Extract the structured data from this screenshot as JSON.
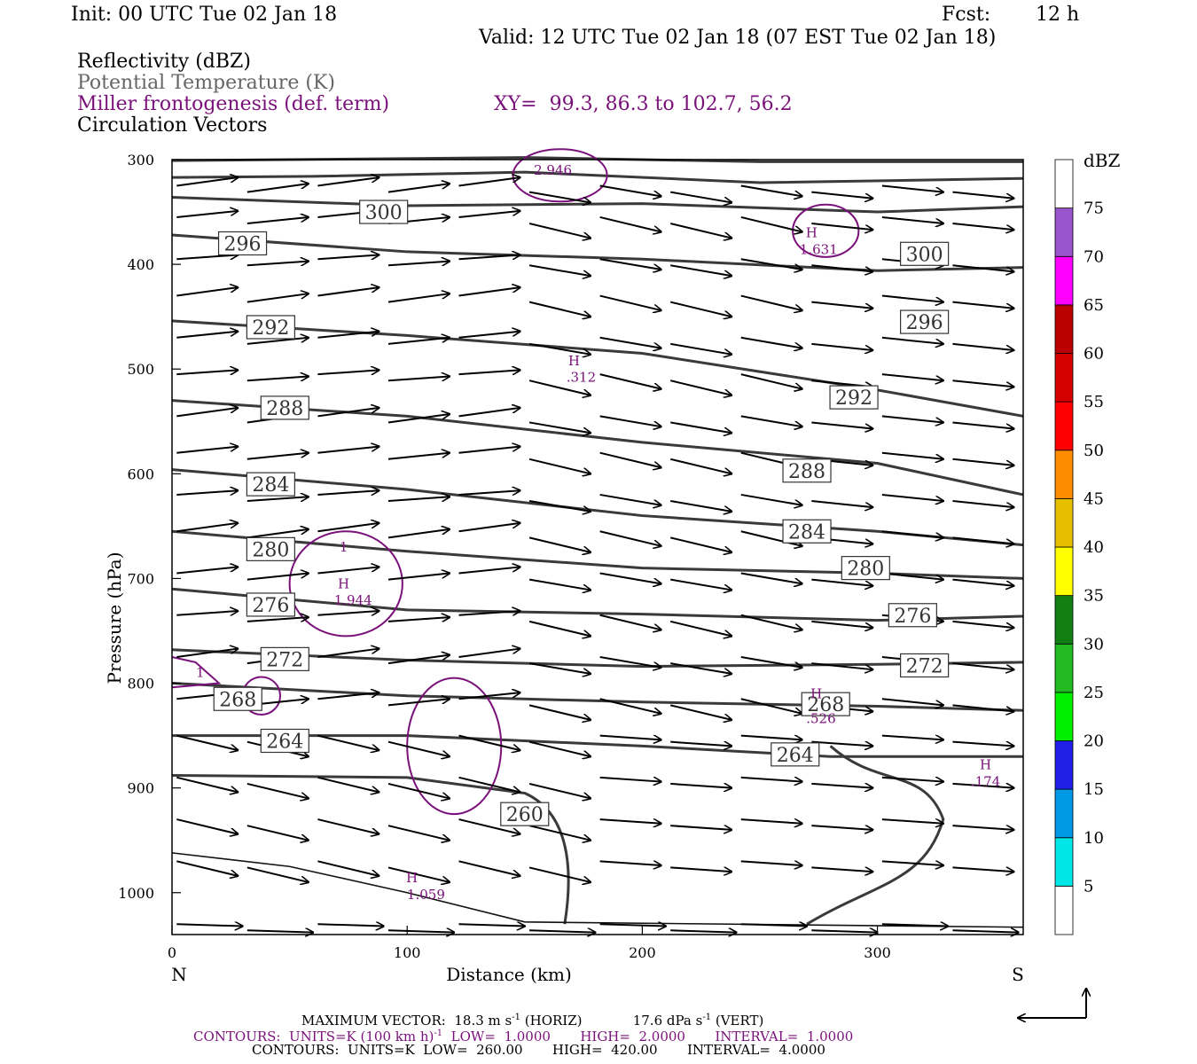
{
  "header": {
    "init": "Init: 00 UTC Tue 02 Jan 18",
    "fcst_label": "Fcst:",
    "fcst_value": "12 h",
    "valid": "Valid: 12 UTC Tue 02 Jan 18 (07 EST Tue 02 Jan 18)"
  },
  "legend": {
    "reflectivity": "Reflectivity (dBZ)",
    "theta": "Potential Temperature (K)",
    "frontogenesis": "Miller frontogenesis (def. term)",
    "xy": "XY=  99.3, 86.3 to 102.7, 56.2",
    "vectors": "Circulation Vectors"
  },
  "colors": {
    "theta_contour": "#3a3a3a",
    "frontogenesis": "#7a117a",
    "vector": "#000000"
  },
  "chart_data": {
    "type": "cross-section",
    "xlabel": "Distance (km)",
    "ylabel": "Pressure (hPa)",
    "xlim": [
      0,
      362
    ],
    "ylim": [
      1040,
      300
    ],
    "x_ticks": [
      0,
      100,
      200,
      300
    ],
    "y_ticks": [
      300,
      400,
      500,
      600,
      700,
      800,
      900,
      1000
    ],
    "left_end_label": "N",
    "right_end_label": "S",
    "theta_contours": [
      {
        "level": "300",
        "label_x": 90,
        "label_p": 350
      },
      {
        "level": "296",
        "label_x": 30,
        "label_p": 380
      },
      {
        "level": "300",
        "label_x": 320,
        "label_p": 390
      },
      {
        "level": "292",
        "label_x": 42,
        "label_p": 460
      },
      {
        "level": "296",
        "label_x": 320,
        "label_p": 455
      },
      {
        "level": "288",
        "label_x": 48,
        "label_p": 537
      },
      {
        "level": "292",
        "label_x": 290,
        "label_p": 527
      },
      {
        "level": "288",
        "label_x": 270,
        "label_p": 597
      },
      {
        "level": "284",
        "label_x": 42,
        "label_p": 610
      },
      {
        "level": "284",
        "label_x": 270,
        "label_p": 655
      },
      {
        "level": "280",
        "label_x": 42,
        "label_p": 672
      },
      {
        "level": "280",
        "label_x": 295,
        "label_p": 690
      },
      {
        "level": "276",
        "label_x": 42,
        "label_p": 725
      },
      {
        "level": "276",
        "label_x": 315,
        "label_p": 735
      },
      {
        "level": "272",
        "label_x": 48,
        "label_p": 777
      },
      {
        "level": "272",
        "label_x": 320,
        "label_p": 783
      },
      {
        "level": "268",
        "label_x": 28,
        "label_p": 815
      },
      {
        "level": "268",
        "label_x": 278,
        "label_p": 820
      },
      {
        "level": "264",
        "label_x": 48,
        "label_p": 855
      },
      {
        "level": "264",
        "label_x": 265,
        "label_p": 868
      },
      {
        "level": "260",
        "label_x": 150,
        "label_p": 925
      }
    ],
    "frontogenesis_labels": [
      {
        "text": "2.946",
        "x": 162,
        "p": 310
      },
      {
        "text": "H",
        "x": 272,
        "p": 370
      },
      {
        "text": "1.631",
        "x": 275,
        "p": 386
      },
      {
        "text": "H",
        "x": 171,
        "p": 492
      },
      {
        "text": ".312",
        "x": 174,
        "p": 508
      },
      {
        "text": "H",
        "x": 73,
        "p": 705
      },
      {
        "text": "1.944",
        "x": 77,
        "p": 721
      },
      {
        "text": "1",
        "x": 73,
        "p": 670
      },
      {
        "text": "1",
        "x": 12,
        "p": 790
      },
      {
        "text": "H",
        "x": 274,
        "p": 810
      },
      {
        "text": ".526",
        "x": 276,
        "p": 834
      },
      {
        "text": "H",
        "x": 346,
        "p": 878
      },
      {
        "text": ".174",
        "x": 346,
        "p": 894
      },
      {
        "text": "H",
        "x": 102,
        "p": 986
      },
      {
        "text": "1.059",
        "x": 108,
        "p": 1002
      }
    ]
  },
  "colorbar": {
    "unit": "dBZ",
    "levels": [
      "5",
      "10",
      "15",
      "20",
      "25",
      "30",
      "35",
      "40",
      "45",
      "50",
      "55",
      "60",
      "65",
      "70",
      "75"
    ],
    "colors": [
      "#ffffff",
      "#00e5e5",
      "#0099e6",
      "#1f1fe5",
      "#00ee00",
      "#22bb22",
      "#117f11",
      "#ffff00",
      "#e6bf00",
      "#ff8c00",
      "#ff0000",
      "#d40000",
      "#bb0000",
      "#ff00ff",
      "#9955cc",
      "#ffffff"
    ]
  },
  "footer": {
    "max_vector": "MAXIMUM VECTOR:  18.3 m s",
    "max_vector_horiz": "(HORIZ)",
    "max_vector_vert_val": "17.6 dPa s",
    "max_vector_vert": "(VERT)",
    "exp": "-1",
    "contours_purple_a": "CONTOURS:  UNITS=K (100 km h)",
    "contours_purple_b": "LOW=  1.0000       HIGH=  2.0000       INTERVAL=  1.0000",
    "contours_black": "CONTOURS:  UNITS=K  LOW=  260.00       HIGH=  420.00       INTERVAL=  4.0000"
  }
}
